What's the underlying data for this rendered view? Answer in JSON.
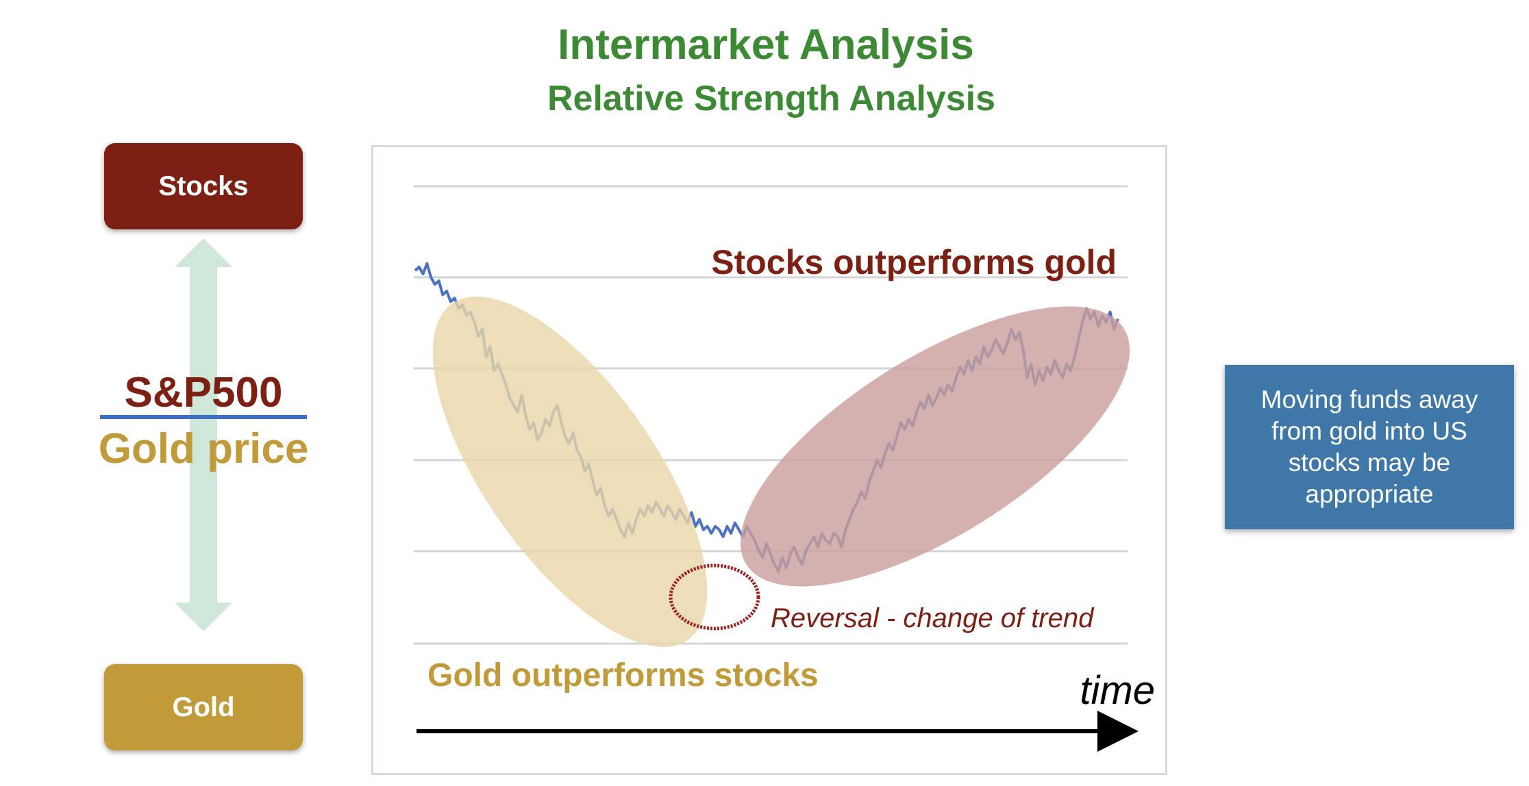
{
  "title": "Intermarket Analysis",
  "subtitle": "Relative Strength Analysis",
  "stocks_label": "Stocks",
  "gold_label": "Gold",
  "ratio": {
    "numerator": "S&P500",
    "denominator": "Gold price"
  },
  "annotations": {
    "stocks_outperform": "Stocks outperforms gold",
    "gold_outperform": "Gold outperforms stocks",
    "reversal": "Reversal - change of trend",
    "time": "time"
  },
  "note": "Moving funds away from gold into US stocks may be appropriate",
  "colors": {
    "title_green": "#3d8a35",
    "stocks_red": "#7d1f13",
    "gold": "#c19a3a",
    "line_blue": "#4a72c4",
    "note_blue": "#3f77a8",
    "arrow_green": "#cfe7d8",
    "gold_ellipse": "#e8d6a8",
    "stocks_ellipse": "#c99e9a"
  },
  "chart_data": {
    "type": "line",
    "series": [
      {
        "values": [
          0.99,
          1.0,
          0.98,
          1.01,
          0.97,
          0.95,
          0.96,
          0.92,
          0.93,
          0.9,
          0.91,
          0.88,
          0.89,
          0.86,
          0.87,
          0.84,
          0.8,
          0.82,
          0.74,
          0.77,
          0.7,
          0.72,
          0.69,
          0.66,
          0.62,
          0.6,
          0.58,
          0.63,
          0.57,
          0.53,
          0.55,
          0.5,
          0.52,
          0.56,
          0.54,
          0.58,
          0.6,
          0.55,
          0.51,
          0.49,
          0.52,
          0.47,
          0.45,
          0.41,
          0.43,
          0.38,
          0.34,
          0.36,
          0.31,
          0.28,
          0.3,
          0.27,
          0.24,
          0.22,
          0.26,
          0.23,
          0.27,
          0.3,
          0.28,
          0.31,
          0.29,
          0.32,
          0.3,
          0.28,
          0.31,
          0.29,
          0.27,
          0.3,
          0.28,
          0.26,
          0.29,
          0.25,
          0.27,
          0.24,
          0.25,
          0.23,
          0.25,
          0.24,
          0.22,
          0.25,
          0.23,
          0.26,
          0.24,
          0.22,
          0.25,
          0.23,
          0.21,
          0.18,
          0.16,
          0.2,
          0.17,
          0.14,
          0.12,
          0.16,
          0.13,
          0.17,
          0.19,
          0.16,
          0.14,
          0.18,
          0.2,
          0.22,
          0.19,
          0.23,
          0.21,
          0.2,
          0.23,
          0.22,
          0.19,
          0.24,
          0.27,
          0.3,
          0.32,
          0.35,
          0.33,
          0.38,
          0.41,
          0.44,
          0.42,
          0.46,
          0.49,
          0.47,
          0.51,
          0.55,
          0.53,
          0.56,
          0.54,
          0.58,
          0.61,
          0.59,
          0.63,
          0.6,
          0.62,
          0.65,
          0.63,
          0.66,
          0.64,
          0.68,
          0.71,
          0.69,
          0.73,
          0.7,
          0.74,
          0.72,
          0.77,
          0.74,
          0.76,
          0.79,
          0.77,
          0.75,
          0.78,
          0.82,
          0.79,
          0.81,
          0.76,
          0.68,
          0.72,
          0.66,
          0.7,
          0.67,
          0.71,
          0.69,
          0.73,
          0.7,
          0.68,
          0.72,
          0.7,
          0.74,
          0.79,
          0.84,
          0.88,
          0.85,
          0.87,
          0.83,
          0.86,
          0.84,
          0.87,
          0.82,
          0.85
        ]
      }
    ],
    "xlabel": "time",
    "grid": true
  }
}
